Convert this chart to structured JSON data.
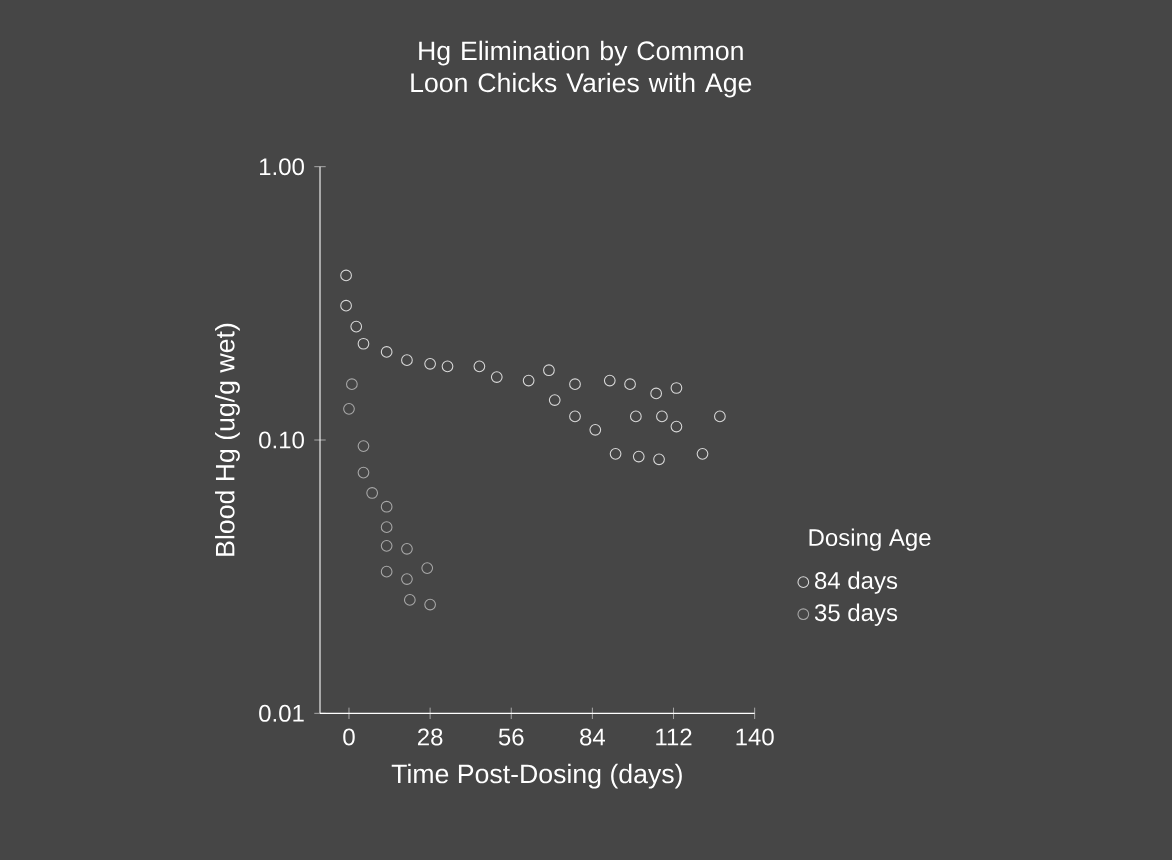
{
  "chart_data": {
    "type": "scatter",
    "title": "Hg Elimination by Common Loon Chicks Varies with Age",
    "xlabel": "Time Post-Dosing (days)",
    "ylabel": "Blood Hg (ug/g wet)",
    "legend_title": "Dosing Age",
    "log": "y",
    "xlim": [
      -10,
      140
    ],
    "ylim": [
      0.01,
      1
    ],
    "xticks": [
      0,
      28,
      56,
      84,
      112,
      140
    ],
    "yticks": [
      {
        "value": 0.01,
        "label": "0.01"
      },
      {
        "value": 0.1,
        "label": "0.10"
      },
      {
        "value": 1,
        "label": "1.00"
      }
    ],
    "legend": "right",
    "marker": "circle",
    "series": [
      {
        "name": "84 days",
        "color": "#d8d8d8",
        "x": [
          -1,
          -1,
          2.5,
          5,
          13,
          20,
          28,
          34,
          45,
          51,
          62,
          69,
          78,
          90,
          97,
          106,
          113,
          78,
          85,
          99,
          108,
          113,
          128,
          92,
          100,
          107,
          122,
          71
        ],
        "values": [
          0.4,
          0.31,
          0.26,
          0.225,
          0.21,
          0.196,
          0.19,
          0.186,
          0.186,
          0.17,
          0.165,
          0.18,
          0.16,
          0.165,
          0.16,
          0.148,
          0.155,
          0.122,
          0.109,
          0.122,
          0.122,
          0.112,
          0.122,
          0.089,
          0.087,
          0.085,
          0.089,
          0.14
        ]
      },
      {
        "name": "35 days",
        "color": "#a8a8a8",
        "x": [
          1,
          0,
          5,
          5,
          8,
          13,
          13,
          13,
          20,
          13,
          20,
          27,
          21,
          28
        ],
        "values": [
          0.16,
          0.13,
          0.095,
          0.076,
          0.064,
          0.057,
          0.048,
          0.041,
          0.04,
          0.033,
          0.031,
          0.034,
          0.026,
          0.025
        ]
      }
    ]
  }
}
